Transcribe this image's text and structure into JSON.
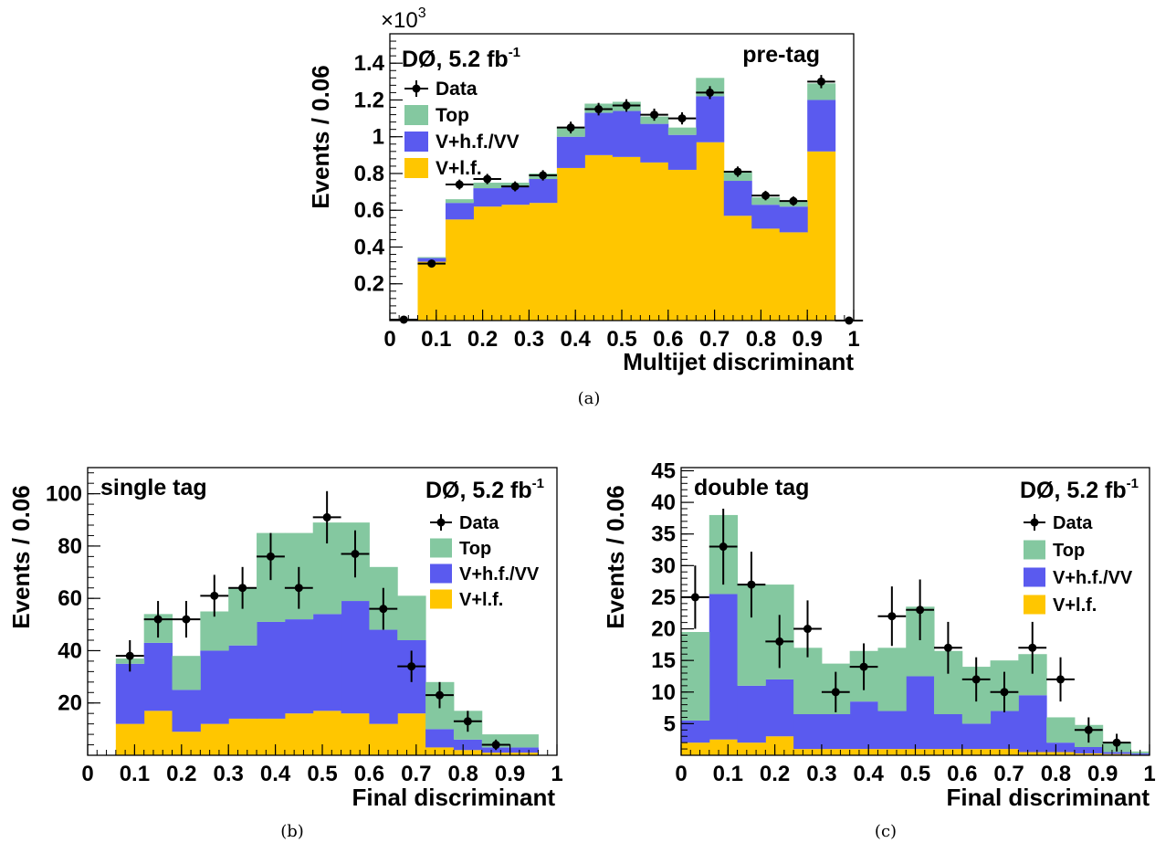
{
  "colors": {
    "top": "#84c8a0",
    "vhf": "#5a5aef",
    "vlf": "#ffc600",
    "data": "#000000",
    "frame": "#000000"
  },
  "chart_data": [
    {
      "id": "a",
      "type": "bar",
      "stacked": true,
      "caption": "(a)",
      "experiment_label": "DØ, 5.2 fb",
      "luminosity_exponent": "-1",
      "category_label": "pre-tag",
      "xlabel": "Multijet discriminant",
      "ylabel": "Events / 0.06",
      "y_multiplier": "×10",
      "y_multiplier_exponent": "3",
      "xlim": [
        0,
        1
      ],
      "ylim": [
        0,
        1.56
      ],
      "x_ticks": [
        "0",
        "0.1",
        "0.2",
        "0.3",
        "0.4",
        "0.5",
        "0.6",
        "0.7",
        "0.8",
        "0.9",
        "1"
      ],
      "y_ticks": [
        "0.2",
        "0.4",
        "0.6",
        "0.8",
        "1",
        "1.2",
        "1.4"
      ],
      "bin_edges": [
        0,
        0.06,
        0.12,
        0.18,
        0.24,
        0.3,
        0.36,
        0.42,
        0.48,
        0.54,
        0.6,
        0.66,
        0.72,
        0.78,
        0.84,
        0.9,
        0.96,
        1.0
      ],
      "series": [
        {
          "name": "V+l.f.",
          "role": "vlf",
          "values": [
            0,
            0.32,
            0.55,
            0.62,
            0.63,
            0.64,
            0.83,
            0.9,
            0.89,
            0.86,
            0.82,
            0.97,
            0.57,
            0.5,
            0.48,
            0.92,
            0
          ]
        },
        {
          "name": "V+h.f./VV",
          "role": "vhf",
          "values": [
            0,
            0.02,
            0.09,
            0.1,
            0.1,
            0.13,
            0.17,
            0.23,
            0.25,
            0.21,
            0.19,
            0.25,
            0.19,
            0.13,
            0.14,
            0.28,
            0
          ]
        },
        {
          "name": "Top",
          "role": "top",
          "values": [
            0,
            0.005,
            0.02,
            0.03,
            0.02,
            0.03,
            0.05,
            0.05,
            0.05,
            0.04,
            0.04,
            0.1,
            0.05,
            0.04,
            0.03,
            0.09,
            0
          ]
        }
      ],
      "data_points": {
        "name": "Data",
        "x": [
          0.03,
          0.09,
          0.15,
          0.21,
          0.27,
          0.33,
          0.39,
          0.45,
          0.51,
          0.57,
          0.63,
          0.69,
          0.75,
          0.81,
          0.87,
          0.93,
          0.99
        ],
        "y": [
          0.005,
          0.31,
          0.74,
          0.77,
          0.73,
          0.79,
          1.05,
          1.15,
          1.17,
          1.12,
          1.1,
          1.24,
          0.81,
          0.68,
          0.65,
          1.3,
          0
        ],
        "err": [
          0.003,
          0.018,
          0.027,
          0.028,
          0.027,
          0.028,
          0.032,
          0.034,
          0.034,
          0.033,
          0.033,
          0.035,
          0.028,
          0.026,
          0.025,
          0.036,
          0
        ]
      },
      "legend": [
        {
          "label": "Data",
          "role": "data"
        },
        {
          "label": "Top",
          "role": "top"
        },
        {
          "label": "V+h.f./VV",
          "role": "vhf"
        },
        {
          "label": "V+l.f.",
          "role": "vlf"
        }
      ],
      "legend_position": "top-left"
    },
    {
      "id": "b",
      "type": "bar",
      "stacked": true,
      "caption": "(b)",
      "experiment_label": "DØ, 5.2 fb",
      "luminosity_exponent": "-1",
      "category_label": "single tag",
      "xlabel": "Final discriminant",
      "ylabel": "Events / 0.06",
      "xlim": [
        0,
        1
      ],
      "ylim": [
        0,
        110
      ],
      "x_ticks": [
        "0",
        "0.1",
        "0.2",
        "0.3",
        "0.4",
        "0.5",
        "0.6",
        "0.7",
        "0.8",
        "0.9",
        "1"
      ],
      "y_ticks": [
        "20",
        "40",
        "60",
        "80",
        "100"
      ],
      "bin_edges": [
        0,
        0.06,
        0.12,
        0.18,
        0.24,
        0.3,
        0.36,
        0.42,
        0.48,
        0.54,
        0.6,
        0.66,
        0.72,
        0.78,
        0.84,
        0.9,
        0.96,
        1.0
      ],
      "series": [
        {
          "name": "V+l.f.",
          "role": "vlf",
          "values": [
            0,
            12,
            17,
            9,
            12,
            14,
            14,
            16,
            17,
            16,
            12,
            16,
            3,
            2,
            1,
            1,
            0
          ]
        },
        {
          "name": "V+h.f./VV",
          "role": "vhf",
          "values": [
            0,
            23,
            26,
            16,
            28,
            28,
            37,
            36,
            37,
            43,
            36,
            28,
            7,
            4,
            2,
            2,
            0
          ]
        },
        {
          "name": "Top",
          "role": "top",
          "values": [
            0,
            2,
            11,
            13,
            15,
            22,
            34,
            33,
            35,
            30,
            24,
            17,
            18,
            11,
            5,
            5,
            0
          ]
        }
      ],
      "data_points": {
        "name": "Data",
        "x": [
          0.09,
          0.15,
          0.21,
          0.27,
          0.33,
          0.39,
          0.45,
          0.51,
          0.57,
          0.63,
          0.69,
          0.75,
          0.81,
          0.87
        ],
        "y": [
          38,
          52,
          52,
          61,
          64,
          76,
          64,
          91,
          77,
          56,
          34,
          23,
          13,
          4
        ],
        "err": [
          6,
          7,
          7,
          8,
          8,
          9,
          8,
          10,
          9,
          8,
          6,
          5,
          4,
          2
        ]
      },
      "legend": [
        {
          "label": "Data",
          "role": "data"
        },
        {
          "label": "Top",
          "role": "top"
        },
        {
          "label": "V+h.f./VV",
          "role": "vhf"
        },
        {
          "label": "V+l.f.",
          "role": "vlf"
        }
      ],
      "legend_position": "top-right"
    },
    {
      "id": "c",
      "type": "bar",
      "stacked": true,
      "caption": "(c)",
      "experiment_label": "DØ, 5.2 fb",
      "luminosity_exponent": "-1",
      "category_label": "double tag",
      "xlabel": "Final discriminant",
      "ylabel": "Events / 0.06",
      "xlim": [
        0,
        1
      ],
      "ylim": [
        0,
        45.5
      ],
      "x_ticks": [
        "0",
        "0.1",
        "0.2",
        "0.3",
        "0.4",
        "0.5",
        "0.6",
        "0.7",
        "0.8",
        "0.9",
        "1"
      ],
      "y_ticks": [
        "5",
        "10",
        "15",
        "20",
        "25",
        "30",
        "35",
        "40",
        "45"
      ],
      "bin_edges": [
        0,
        0.06,
        0.12,
        0.18,
        0.24,
        0.3,
        0.36,
        0.42,
        0.48,
        0.54,
        0.6,
        0.66,
        0.72,
        0.78,
        0.84,
        0.9,
        0.96,
        1.0
      ],
      "series": [
        {
          "name": "V+l.f.",
          "role": "vlf",
          "values": [
            2,
            2.5,
            2,
            3,
            1,
            1,
            1,
            1,
            1,
            1,
            1,
            1,
            0.5,
            0.5,
            0.3,
            0.2,
            0.1
          ]
        },
        {
          "name": "V+h.f./VV",
          "role": "vhf",
          "values": [
            3.5,
            23,
            9,
            9,
            5.5,
            5.5,
            7.5,
            6,
            11.5,
            5.5,
            4,
            6,
            9,
            1.5,
            1,
            0.3,
            0.2
          ]
        },
        {
          "name": "Top",
          "role": "top",
          "values": [
            14,
            12.5,
            16,
            15,
            10.5,
            8,
            8,
            10,
            11,
            10,
            9,
            8,
            6.5,
            4,
            3.5,
            1.5,
            0.3
          ]
        }
      ],
      "data_points": {
        "name": "Data",
        "x": [
          0.03,
          0.09,
          0.15,
          0.21,
          0.27,
          0.33,
          0.39,
          0.45,
          0.51,
          0.57,
          0.63,
          0.69,
          0.75,
          0.81,
          0.87,
          0.93
        ],
        "y": [
          25,
          33,
          27,
          18,
          20,
          10,
          14,
          22,
          23,
          17,
          12,
          10,
          17,
          12,
          4,
          2
        ],
        "err": [
          5,
          6,
          5.2,
          4.2,
          4.5,
          3.2,
          3.7,
          4.7,
          4.8,
          4.1,
          3.5,
          3.2,
          4.1,
          3.5,
          2,
          1.4
        ]
      },
      "legend": [
        {
          "label": "Data",
          "role": "data"
        },
        {
          "label": "Top",
          "role": "top"
        },
        {
          "label": "V+h.f./VV",
          "role": "vhf"
        },
        {
          "label": "V+l.f.",
          "role": "vlf"
        }
      ],
      "legend_position": "top-right"
    }
  ]
}
